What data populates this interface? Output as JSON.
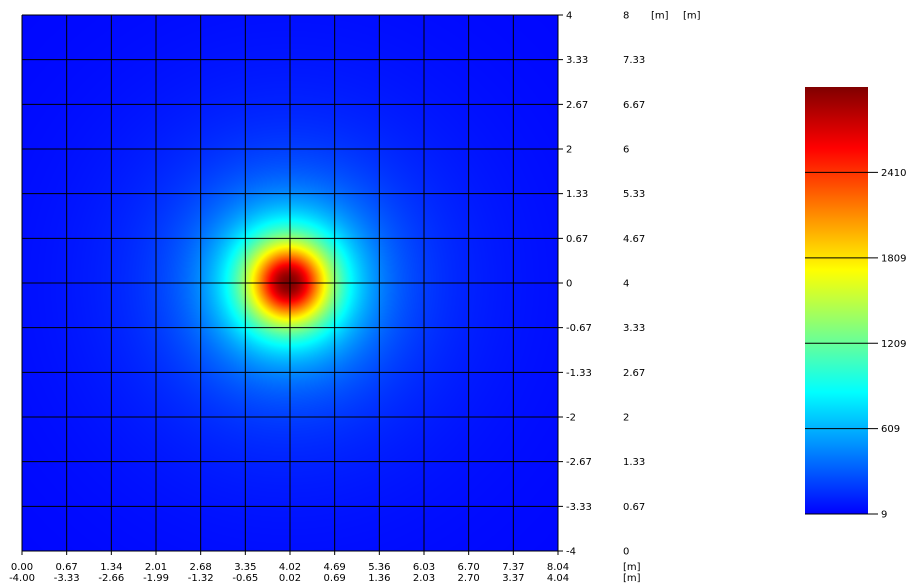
{
  "colors": {
    "colorbar_stops": [
      "#0000ff",
      "#0080ff",
      "#00ffff",
      "#80ff80",
      "#ffff00",
      "#ff8000",
      "#ff0000",
      "#800000"
    ],
    "grid": "#000000",
    "background": "#ffffff"
  },
  "chart_data": {
    "type": "heatmap",
    "title": "",
    "x_ticks_top": [
      "0.00",
      "0.67",
      "1.34",
      "2.01",
      "2.68",
      "3.35",
      "4.02",
      "4.69",
      "5.36",
      "6.03",
      "6.70",
      "7.37",
      "8.04"
    ],
    "x_ticks_bottom": [
      "-4.00",
      "-3.33",
      "-2.66",
      "-1.99",
      "-1.32",
      "-0.65",
      "0.02",
      "0.69",
      "1.36",
      "2.03",
      "2.70",
      "3.37",
      "4.04"
    ],
    "x_unit": [
      "[m]",
      "[m]"
    ],
    "y_ticks_inner": [
      "4",
      "3.33",
      "2.67",
      "2",
      "1.33",
      "0.67",
      "0",
      "-0.67",
      "-1.33",
      "-2",
      "-2.67",
      "-3.33",
      "-4"
    ],
    "y_ticks_outer": [
      "8",
      "7.33",
      "6.67",
      "6",
      "5.33",
      "4.67",
      "4",
      "3.33",
      "2.67",
      "2",
      "1.33",
      "0.67",
      "0"
    ],
    "y_unit": [
      "[m]",
      "[m]"
    ],
    "xlim": [
      -4.0,
      4.04
    ],
    "ylim": [
      -4.0,
      4.0
    ],
    "grid": true,
    "peak": {
      "x": 0.0,
      "y": 0.0,
      "value": 3010
    },
    "field_min": 9,
    "colorbar": {
      "min": 9,
      "max": 3010,
      "ticks": [
        {
          "value": 9,
          "label": "9"
        },
        {
          "value": 609,
          "label": "609"
        },
        {
          "value": 1209,
          "label": "1209"
        },
        {
          "value": 1809,
          "label": "1809"
        },
        {
          "value": 2410,
          "label": "2410"
        }
      ]
    }
  }
}
